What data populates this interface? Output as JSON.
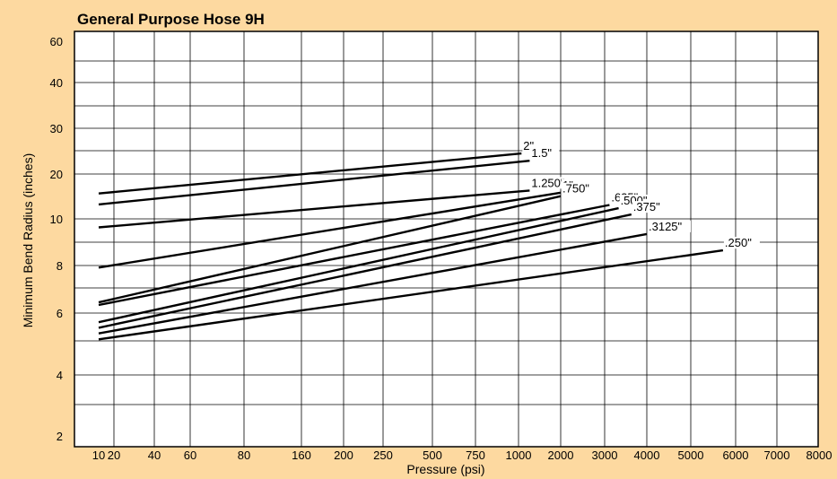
{
  "chart_data": {
    "type": "line",
    "title": "General Purpose Hose 9H",
    "xlabel": "Pressure (psi)",
    "ylabel": "Minimum Bend Radius (inches)",
    "x_ticks": [
      "10",
      "20",
      "40",
      "60",
      "80",
      "160",
      "200",
      "250",
      "500",
      "750",
      "1000",
      "2000",
      "3000",
      "4000",
      "5000",
      "6000",
      "7000",
      "8000"
    ],
    "y_ticks": [
      "2",
      "4",
      "6",
      "8",
      "10",
      "20",
      "30",
      "40",
      "60"
    ],
    "grid": true,
    "series": [
      {
        "name": "2\"",
        "x": [
          10,
          1050
        ],
        "y": [
          14.8,
          24.0
        ]
      },
      {
        "name": "1.5\"",
        "x": [
          10,
          1200
        ],
        "y": [
          12.5,
          22.5
        ]
      },
      {
        "name": "1.250\"",
        "x": [
          10,
          1200
        ],
        "y": [
          9.6,
          15.5
        ]
      },
      {
        "name": "1\"",
        "x": [
          10,
          2000
        ],
        "y": [
          7.9,
          15.0
        ]
      },
      {
        "name": ".750\"",
        "x": [
          10,
          2000
        ],
        "y": [
          6.4,
          14.2
        ]
      },
      {
        "name": ".625\"",
        "x": [
          10,
          3100
        ],
        "y": [
          6.3,
          12.4
        ]
      },
      {
        "name": ".500\"",
        "x": [
          10,
          3300
        ],
        "y": [
          5.65,
          11.8
        ]
      },
      {
        "name": ".375\"",
        "x": [
          10,
          3600
        ],
        "y": [
          5.45,
          10.7
        ]
      },
      {
        "name": ".3125\"",
        "x": [
          10,
          4000
        ],
        "y": [
          5.25,
          9.3
        ]
      },
      {
        "name": ".250\"",
        "x": [
          10,
          5700
        ],
        "y": [
          5.05,
          8.6
        ]
      }
    ]
  }
}
